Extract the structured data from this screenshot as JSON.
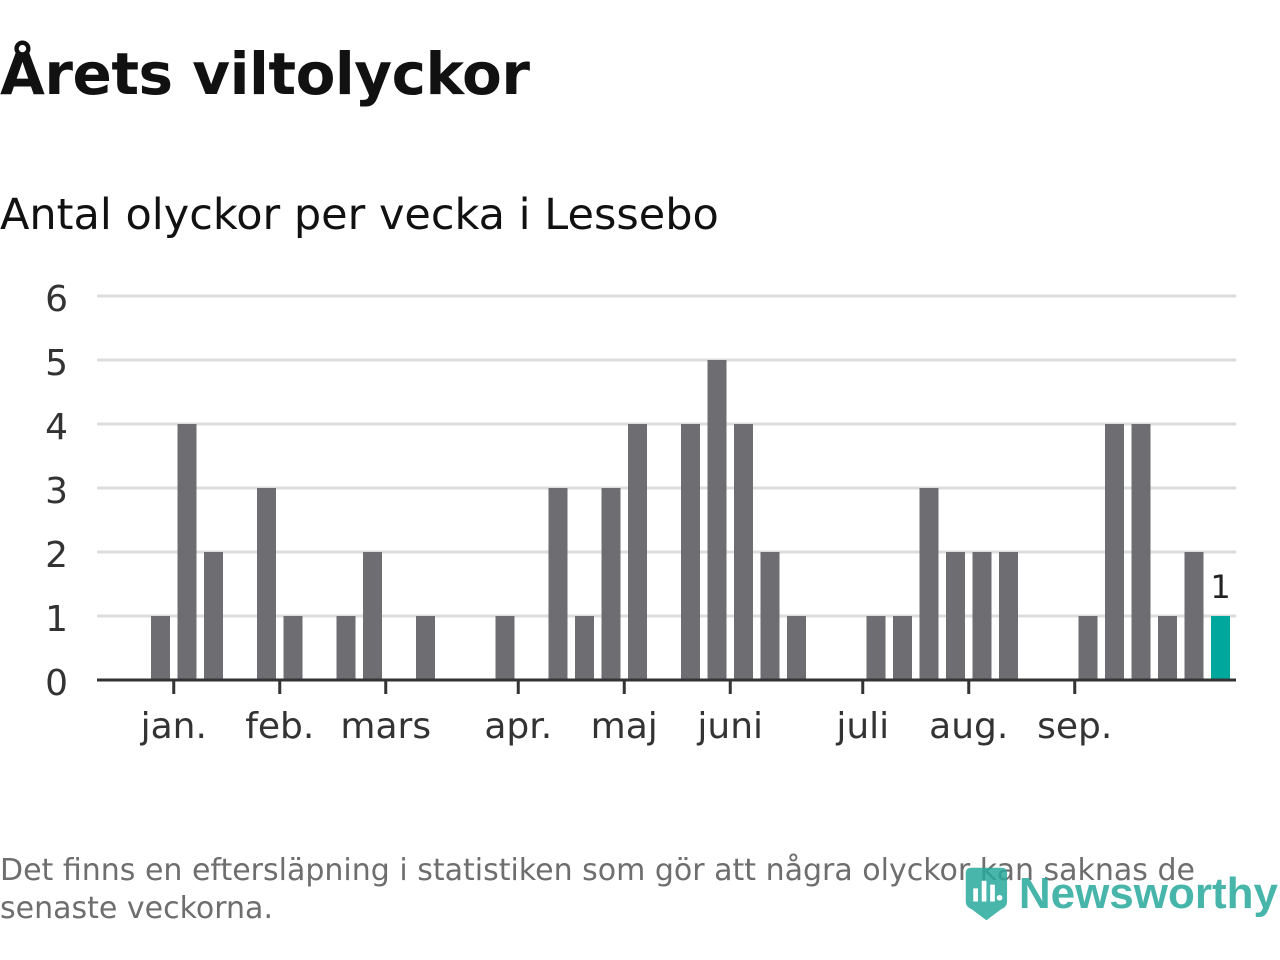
{
  "title": "Årets viltolyckor",
  "subtitle": "Antal olyckor per vecka i Lessebo",
  "footnote": "Det finns en eftersläpning i statistiken som gör att några olyckor kan saknas de senaste veckorna.",
  "brand": {
    "name": "Newsworthy",
    "icon": "newsworthy-logo-icon",
    "color": "#28a99c"
  },
  "chart_data": {
    "type": "bar",
    "title": "Antal olyckor per vecka i Lessebo",
    "xlabel": "",
    "ylabel": "",
    "ylim": [
      0,
      6
    ],
    "yticks": [
      0,
      1,
      2,
      3,
      4,
      5,
      6
    ],
    "grid": true,
    "weeks": [
      1,
      2,
      3,
      4,
      5,
      6,
      7,
      8,
      9,
      10,
      11,
      12,
      13,
      14,
      15,
      16,
      17,
      18,
      19,
      20,
      21,
      22,
      23,
      24,
      25,
      26,
      27,
      28,
      29,
      30,
      31,
      32,
      33,
      34,
      35,
      36,
      37,
      38,
      39,
      40,
      41,
      42,
      43
    ],
    "values": [
      0,
      0,
      1,
      4,
      2,
      0,
      3,
      1,
      0,
      1,
      2,
      0,
      1,
      0,
      0,
      1,
      0,
      3,
      1,
      3,
      4,
      0,
      4,
      5,
      4,
      2,
      1,
      0,
      0,
      1,
      1,
      3,
      2,
      2,
      2,
      0,
      0,
      1,
      4,
      4,
      1,
      2,
      1
    ],
    "bar_color": "#6e6d72",
    "highlight": {
      "index": 42,
      "color": "#00a79d",
      "label": "1"
    },
    "month_labels": [
      {
        "label": "jan.",
        "week": 3.5
      },
      {
        "label": "feb.",
        "week": 7.5
      },
      {
        "label": "mars",
        "week": 11.5
      },
      {
        "label": "apr.",
        "week": 16.5
      },
      {
        "label": "maj",
        "week": 20.5
      },
      {
        "label": "juni",
        "week": 24.5
      },
      {
        "label": "juli",
        "week": 29.5
      },
      {
        "label": "aug.",
        "week": 33.5
      },
      {
        "label": "sep.",
        "week": 37.5
      }
    ]
  }
}
